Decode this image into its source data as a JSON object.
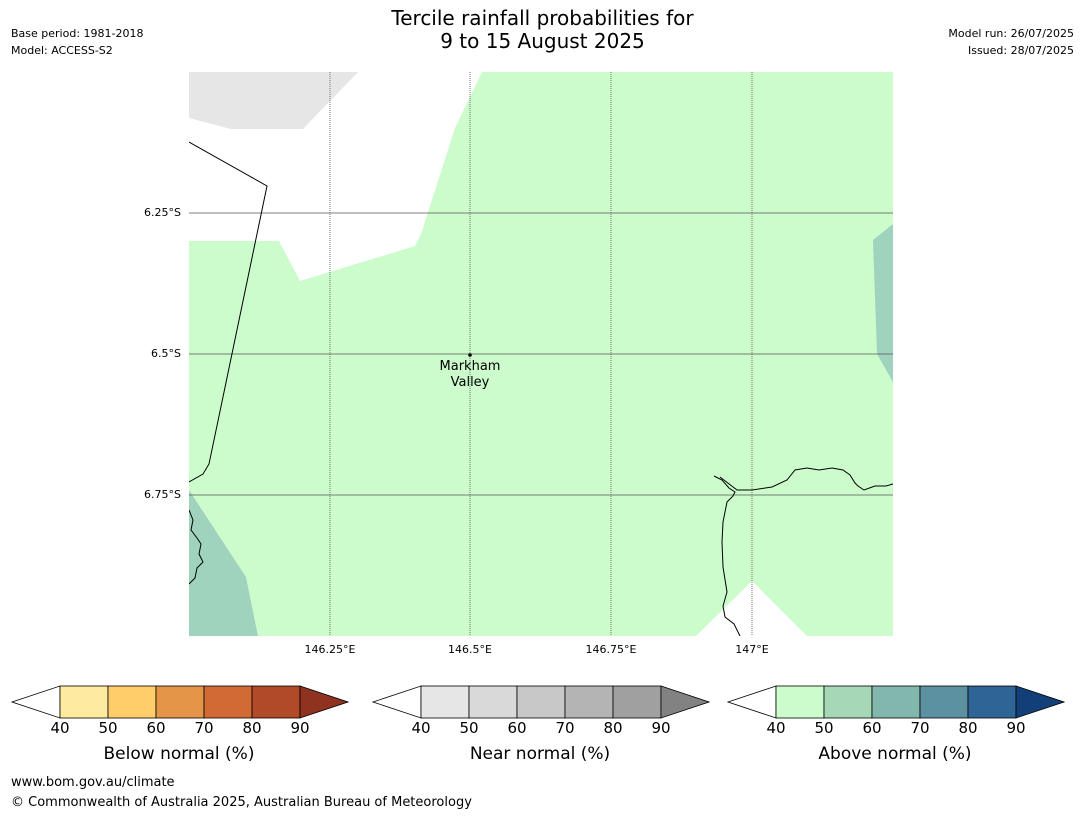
{
  "title": {
    "line1": "Tercile rainfall probabilities for",
    "line2": "9 to 15 August 2025"
  },
  "meta_left": {
    "base_period": "Base period: 1981-2018",
    "model": "Model: ACCESS-S2"
  },
  "meta_right": {
    "model_run": "Model run: 26/07/2025",
    "issued": "Issued: 28/07/2025"
  },
  "map": {
    "lat_labels": [
      "6.25°S",
      "6.5°S",
      "6.75°S"
    ],
    "lon_labels": [
      "146.25°E",
      "146.5°E",
      "146.75°E",
      "147°E"
    ],
    "place": {
      "name_line1": "Markham",
      "name_line2": "Valley"
    },
    "colors": {
      "above_40_50": "#ccfccc",
      "above_50_60": "#a0d3be",
      "near_40_50": "#e6e6e6",
      "boundary": "#000000",
      "gridline": "#555555"
    }
  },
  "colorbars": [
    {
      "label": "Below normal (%)",
      "ticks": [
        "40",
        "50",
        "60",
        "70",
        "80",
        "90"
      ],
      "colors": [
        "#ffeba0",
        "#ffcd69",
        "#e49547",
        "#d26a35",
        "#b04a28",
        "#8f3320"
      ]
    },
    {
      "label": "Near normal (%)",
      "ticks": [
        "40",
        "50",
        "60",
        "70",
        "80",
        "90"
      ],
      "colors": [
        "#e6e6e6",
        "#d9d9d9",
        "#c8c8c8",
        "#b4b4b4",
        "#a0a0a0",
        "#828282"
      ]
    },
    {
      "label": "Above normal (%)",
      "ticks": [
        "40",
        "50",
        "60",
        "70",
        "80",
        "90"
      ],
      "colors": [
        "#ccfccc",
        "#a6d7b7",
        "#82b7ae",
        "#5b91a0",
        "#2f6497",
        "#123f77"
      ]
    }
  ],
  "footer": {
    "url": "www.bom.gov.au/climate",
    "copyright": "© Commonwealth of Australia 2025, Australian Bureau of Meteorology"
  }
}
